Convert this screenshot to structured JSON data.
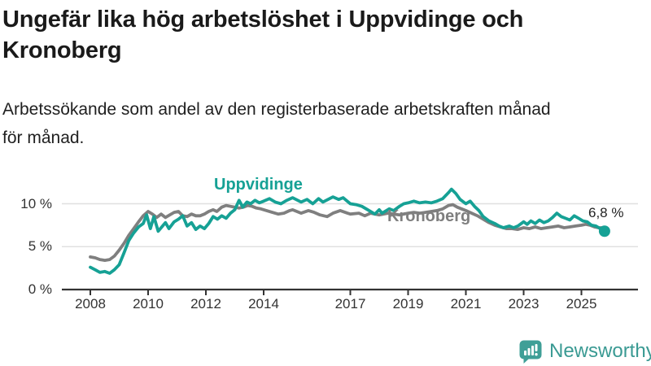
{
  "header": {
    "title": "Ungefär lika hög arbetslöshet i Uppvidinge och Kronoberg",
    "title_lines": [
      "Ungefär lika hög arbetslöshet i Uppvidinge och",
      "Kronoberg"
    ],
    "subtitle": "Arbetssökande som andel av den registerbaserade arbetskraften månad för månad.",
    "subtitle_lines": [
      "Arbetssökande som andel av den registerbaserade arbetskraften månad",
      "för månad."
    ]
  },
  "footer": {
    "brand": "Newsworthy",
    "logo_icon": "bar-chart-speech-bubble-icon"
  },
  "colors": {
    "uppvidinge": "#16a195",
    "kronoberg": "#7f7f7f",
    "grid": "#e0e0e0",
    "axis": "#333333",
    "brand_teal": "#3f9f97"
  },
  "chart_data": {
    "type": "line",
    "title": "Ungefär lika hög arbetslöshet i Uppvidinge och Kronoberg",
    "xlabel": "",
    "ylabel": "",
    "grid": "horizontal",
    "legend_position": "inline-labels",
    "xlim": [
      2007.0,
      2026.9
    ],
    "ylim": [
      0,
      13.7
    ],
    "y_ticks": [
      {
        "value": 0,
        "label": "0 %"
      },
      {
        "value": 5,
        "label": "5 %"
      },
      {
        "value": 10,
        "label": "10 %"
      }
    ],
    "x_ticks": [
      {
        "value": 2008,
        "label": "2008"
      },
      {
        "value": 2010,
        "label": "2010"
      },
      {
        "value": 2012,
        "label": "2012"
      },
      {
        "value": 2014,
        "label": "2014"
      },
      {
        "value": 2017,
        "label": "2017"
      },
      {
        "value": 2019,
        "label": "2019"
      },
      {
        "value": 2021,
        "label": "2021"
      },
      {
        "value": 2023,
        "label": "2023"
      },
      {
        "value": 2025,
        "label": "2025"
      }
    ],
    "series": [
      {
        "name": "Uppvidinge",
        "color": "#16a195",
        "end_label": "6,8 %",
        "end_value": 6.8,
        "end_dot": true,
        "points": [
          [
            2008.0,
            2.6
          ],
          [
            2008.17,
            2.3
          ],
          [
            2008.33,
            2.0
          ],
          [
            2008.5,
            2.1
          ],
          [
            2008.67,
            1.9
          ],
          [
            2008.83,
            2.3
          ],
          [
            2009.0,
            2.9
          ],
          [
            2009.17,
            4.3
          ],
          [
            2009.33,
            5.7
          ],
          [
            2009.5,
            6.6
          ],
          [
            2009.67,
            7.3
          ],
          [
            2009.83,
            7.7
          ],
          [
            2009.95,
            8.7
          ],
          [
            2010.08,
            7.1
          ],
          [
            2010.2,
            8.5
          ],
          [
            2010.35,
            6.8
          ],
          [
            2010.5,
            7.4
          ],
          [
            2010.6,
            7.8
          ],
          [
            2010.72,
            7.1
          ],
          [
            2010.9,
            7.9
          ],
          [
            2011.05,
            8.2
          ],
          [
            2011.2,
            8.6
          ],
          [
            2011.35,
            7.4
          ],
          [
            2011.5,
            7.8
          ],
          [
            2011.65,
            7.0
          ],
          [
            2011.8,
            7.4
          ],
          [
            2011.95,
            7.1
          ],
          [
            2012.1,
            7.7
          ],
          [
            2012.25,
            8.5
          ],
          [
            2012.4,
            8.2
          ],
          [
            2012.55,
            8.6
          ],
          [
            2012.7,
            8.3
          ],
          [
            2012.85,
            8.9
          ],
          [
            2013.0,
            9.3
          ],
          [
            2013.15,
            10.4
          ],
          [
            2013.28,
            9.6
          ],
          [
            2013.42,
            10.2
          ],
          [
            2013.55,
            10.0
          ],
          [
            2013.7,
            10.4
          ],
          [
            2013.85,
            10.1
          ],
          [
            2014.0,
            10.3
          ],
          [
            2014.2,
            10.6
          ],
          [
            2014.4,
            10.2
          ],
          [
            2014.6,
            10.0
          ],
          [
            2014.8,
            10.4
          ],
          [
            2015.0,
            10.7
          ],
          [
            2015.3,
            10.2
          ],
          [
            2015.5,
            10.5
          ],
          [
            2015.7,
            10.0
          ],
          [
            2015.9,
            10.6
          ],
          [
            2016.05,
            10.2
          ],
          [
            2016.4,
            10.8
          ],
          [
            2016.6,
            10.5
          ],
          [
            2016.75,
            10.7
          ],
          [
            2017.0,
            10.0
          ],
          [
            2017.2,
            9.9
          ],
          [
            2017.4,
            9.7
          ],
          [
            2017.55,
            9.4
          ],
          [
            2017.7,
            9.1
          ],
          [
            2017.85,
            8.8
          ],
          [
            2018.0,
            9.3
          ],
          [
            2018.1,
            8.9
          ],
          [
            2018.35,
            9.4
          ],
          [
            2018.5,
            9.2
          ],
          [
            2018.7,
            9.7
          ],
          [
            2018.85,
            10.0
          ],
          [
            2019.0,
            10.1
          ],
          [
            2019.2,
            10.3
          ],
          [
            2019.4,
            10.1
          ],
          [
            2019.6,
            10.2
          ],
          [
            2019.8,
            10.1
          ],
          [
            2020.0,
            10.3
          ],
          [
            2020.2,
            10.6
          ],
          [
            2020.4,
            11.3
          ],
          [
            2020.5,
            11.7
          ],
          [
            2020.65,
            11.2
          ],
          [
            2020.8,
            10.5
          ],
          [
            2021.0,
            10.0
          ],
          [
            2021.15,
            10.3
          ],
          [
            2021.3,
            9.7
          ],
          [
            2021.45,
            9.2
          ],
          [
            2021.6,
            8.5
          ],
          [
            2021.8,
            8.0
          ],
          [
            2022.0,
            7.7
          ],
          [
            2022.15,
            7.4
          ],
          [
            2022.3,
            7.2
          ],
          [
            2022.5,
            7.4
          ],
          [
            2022.65,
            7.2
          ],
          [
            2022.8,
            7.4
          ],
          [
            2023.0,
            7.9
          ],
          [
            2023.12,
            7.6
          ],
          [
            2023.25,
            8.0
          ],
          [
            2023.4,
            7.7
          ],
          [
            2023.55,
            8.1
          ],
          [
            2023.7,
            7.8
          ],
          [
            2023.85,
            8.0
          ],
          [
            2024.0,
            8.4
          ],
          [
            2024.15,
            8.9
          ],
          [
            2024.3,
            8.5
          ],
          [
            2024.45,
            8.3
          ],
          [
            2024.6,
            8.1
          ],
          [
            2024.75,
            8.6
          ],
          [
            2024.9,
            8.3
          ],
          [
            2025.05,
            8.0
          ],
          [
            2025.2,
            7.9
          ],
          [
            2025.35,
            7.5
          ],
          [
            2025.5,
            7.4
          ],
          [
            2025.65,
            7.1
          ],
          [
            2025.8,
            6.8
          ]
        ]
      },
      {
        "name": "Kronoberg",
        "color": "#7f7f7f",
        "end_dot": false,
        "points": [
          [
            2008.0,
            3.8
          ],
          [
            2008.17,
            3.7
          ],
          [
            2008.33,
            3.5
          ],
          [
            2008.5,
            3.4
          ],
          [
            2008.67,
            3.5
          ],
          [
            2008.83,
            3.9
          ],
          [
            2009.0,
            4.6
          ],
          [
            2009.17,
            5.4
          ],
          [
            2009.33,
            6.3
          ],
          [
            2009.5,
            7.1
          ],
          [
            2009.67,
            7.9
          ],
          [
            2009.83,
            8.6
          ],
          [
            2010.0,
            9.1
          ],
          [
            2010.15,
            8.8
          ],
          [
            2010.3,
            8.4
          ],
          [
            2010.45,
            8.8
          ],
          [
            2010.6,
            8.4
          ],
          [
            2010.75,
            8.7
          ],
          [
            2010.9,
            9.0
          ],
          [
            2011.05,
            9.1
          ],
          [
            2011.2,
            8.6
          ],
          [
            2011.35,
            8.5
          ],
          [
            2011.5,
            8.8
          ],
          [
            2011.65,
            8.6
          ],
          [
            2011.8,
            8.6
          ],
          [
            2011.95,
            8.8
          ],
          [
            2012.1,
            9.1
          ],
          [
            2012.25,
            9.3
          ],
          [
            2012.38,
            9.1
          ],
          [
            2012.55,
            9.6
          ],
          [
            2012.7,
            9.8
          ],
          [
            2012.85,
            9.7
          ],
          [
            2013.0,
            9.6
          ],
          [
            2013.15,
            9.5
          ],
          [
            2013.3,
            9.6
          ],
          [
            2013.45,
            9.8
          ],
          [
            2013.6,
            9.7
          ],
          [
            2013.75,
            9.5
          ],
          [
            2013.9,
            9.4
          ],
          [
            2014.1,
            9.2
          ],
          [
            2014.3,
            9.0
          ],
          [
            2014.5,
            8.8
          ],
          [
            2014.7,
            8.9
          ],
          [
            2014.9,
            9.2
          ],
          [
            2015.0,
            9.3
          ],
          [
            2015.3,
            8.9
          ],
          [
            2015.55,
            9.2
          ],
          [
            2015.75,
            9.0
          ],
          [
            2015.95,
            8.7
          ],
          [
            2016.2,
            8.5
          ],
          [
            2016.4,
            8.9
          ],
          [
            2016.65,
            9.2
          ],
          [
            2016.9,
            8.9
          ],
          [
            2017.0,
            8.8
          ],
          [
            2017.3,
            8.9
          ],
          [
            2017.5,
            8.6
          ],
          [
            2017.7,
            8.9
          ],
          [
            2018.0,
            8.7
          ],
          [
            2018.3,
            8.9
          ],
          [
            2018.5,
            8.8
          ],
          [
            2018.7,
            8.7
          ],
          [
            2019.0,
            8.9
          ],
          [
            2019.2,
            9.0
          ],
          [
            2019.4,
            8.9
          ],
          [
            2019.6,
            9.0
          ],
          [
            2019.8,
            9.1
          ],
          [
            2020.0,
            9.2
          ],
          [
            2020.2,
            9.4
          ],
          [
            2020.4,
            9.8
          ],
          [
            2020.55,
            9.9
          ],
          [
            2020.7,
            9.6
          ],
          [
            2020.85,
            9.4
          ],
          [
            2021.0,
            9.2
          ],
          [
            2021.2,
            8.9
          ],
          [
            2021.4,
            8.6
          ],
          [
            2021.6,
            8.2
          ],
          [
            2021.8,
            7.8
          ],
          [
            2022.0,
            7.5
          ],
          [
            2022.2,
            7.3
          ],
          [
            2022.4,
            7.1
          ],
          [
            2022.6,
            7.1
          ],
          [
            2022.8,
            7.0
          ],
          [
            2023.0,
            7.2
          ],
          [
            2023.2,
            7.1
          ],
          [
            2023.4,
            7.3
          ],
          [
            2023.6,
            7.1
          ],
          [
            2023.8,
            7.2
          ],
          [
            2024.0,
            7.3
          ],
          [
            2024.2,
            7.4
          ],
          [
            2024.4,
            7.2
          ],
          [
            2024.6,
            7.3
          ],
          [
            2024.8,
            7.4
          ],
          [
            2025.0,
            7.5
          ],
          [
            2025.15,
            7.6
          ],
          [
            2025.3,
            7.5
          ],
          [
            2025.45,
            7.3
          ],
          [
            2025.6,
            7.2
          ],
          [
            2025.7,
            7.2
          ]
        ]
      }
    ]
  }
}
